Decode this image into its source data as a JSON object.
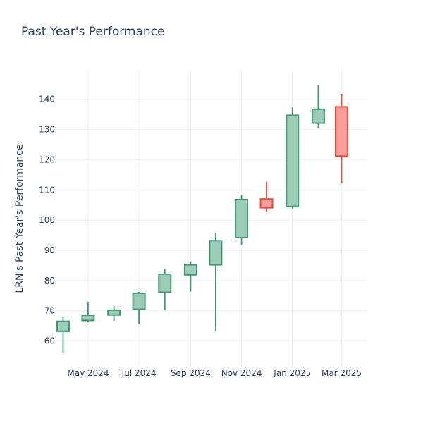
{
  "chart_data": {
    "type": "candlestick",
    "title": "Past Year's Performance",
    "ylabel": "LRN's Past Year's Performance",
    "xlabel": "",
    "ylim": [
      51.5,
      149.5
    ],
    "yticks": [
      60,
      70,
      80,
      90,
      100,
      110,
      120,
      130,
      140
    ],
    "xlim": [
      "2024-03-24",
      "2025-03-31"
    ],
    "xticks": [
      {
        "date": "2024-05-01",
        "label": "May 2024"
      },
      {
        "date": "2024-07-01",
        "label": "Jul 2024"
      },
      {
        "date": "2024-09-01",
        "label": "Sep 2024"
      },
      {
        "date": "2024-11-01",
        "label": "Nov 2024"
      },
      {
        "date": "2025-01-01",
        "label": "Jan 2025"
      },
      {
        "date": "2025-03-01",
        "label": "Mar 2025"
      }
    ],
    "grid": true,
    "colors": {
      "increasing_line": "#3d9970",
      "increasing_fill": "#9dccb8",
      "decreasing_line": "#ff4136",
      "decreasing_fill": "#ff9f9a",
      "text": "#2a3f5f"
    },
    "candles": [
      {
        "date": "2024-04-01",
        "open": 63.2,
        "high": 68.0,
        "low": 56.2,
        "close": 66.5
      },
      {
        "date": "2024-05-01",
        "open": 66.8,
        "high": 73.0,
        "low": 66.2,
        "close": 68.5
      },
      {
        "date": "2024-06-01",
        "open": 68.6,
        "high": 71.6,
        "low": 66.7,
        "close": 70.2
      },
      {
        "date": "2024-07-01",
        "open": 70.5,
        "high": 76.2,
        "low": 65.6,
        "close": 75.8
      },
      {
        "date": "2024-08-01",
        "open": 76.1,
        "high": 83.8,
        "low": 70.1,
        "close": 82.1
      },
      {
        "date": "2024-09-01",
        "open": 81.9,
        "high": 86.3,
        "low": 76.3,
        "close": 85.2
      },
      {
        "date": "2024-10-01",
        "open": 85.2,
        "high": 95.8,
        "low": 63.2,
        "close": 93.2
      },
      {
        "date": "2024-11-01",
        "open": 94.2,
        "high": 108.3,
        "low": 91.8,
        "close": 106.8
      },
      {
        "date": "2024-12-01",
        "open": 107.0,
        "high": 112.7,
        "low": 102.8,
        "close": 104.1
      },
      {
        "date": "2025-01-01",
        "open": 104.5,
        "high": 137.3,
        "low": 103.9,
        "close": 134.7
      },
      {
        "date": "2025-02-01",
        "open": 132.1,
        "high": 144.8,
        "low": 130.6,
        "close": 136.7
      },
      {
        "date": "2025-03-01",
        "open": 137.5,
        "high": 141.8,
        "low": 112.2,
        "close": 121.2
      }
    ]
  }
}
